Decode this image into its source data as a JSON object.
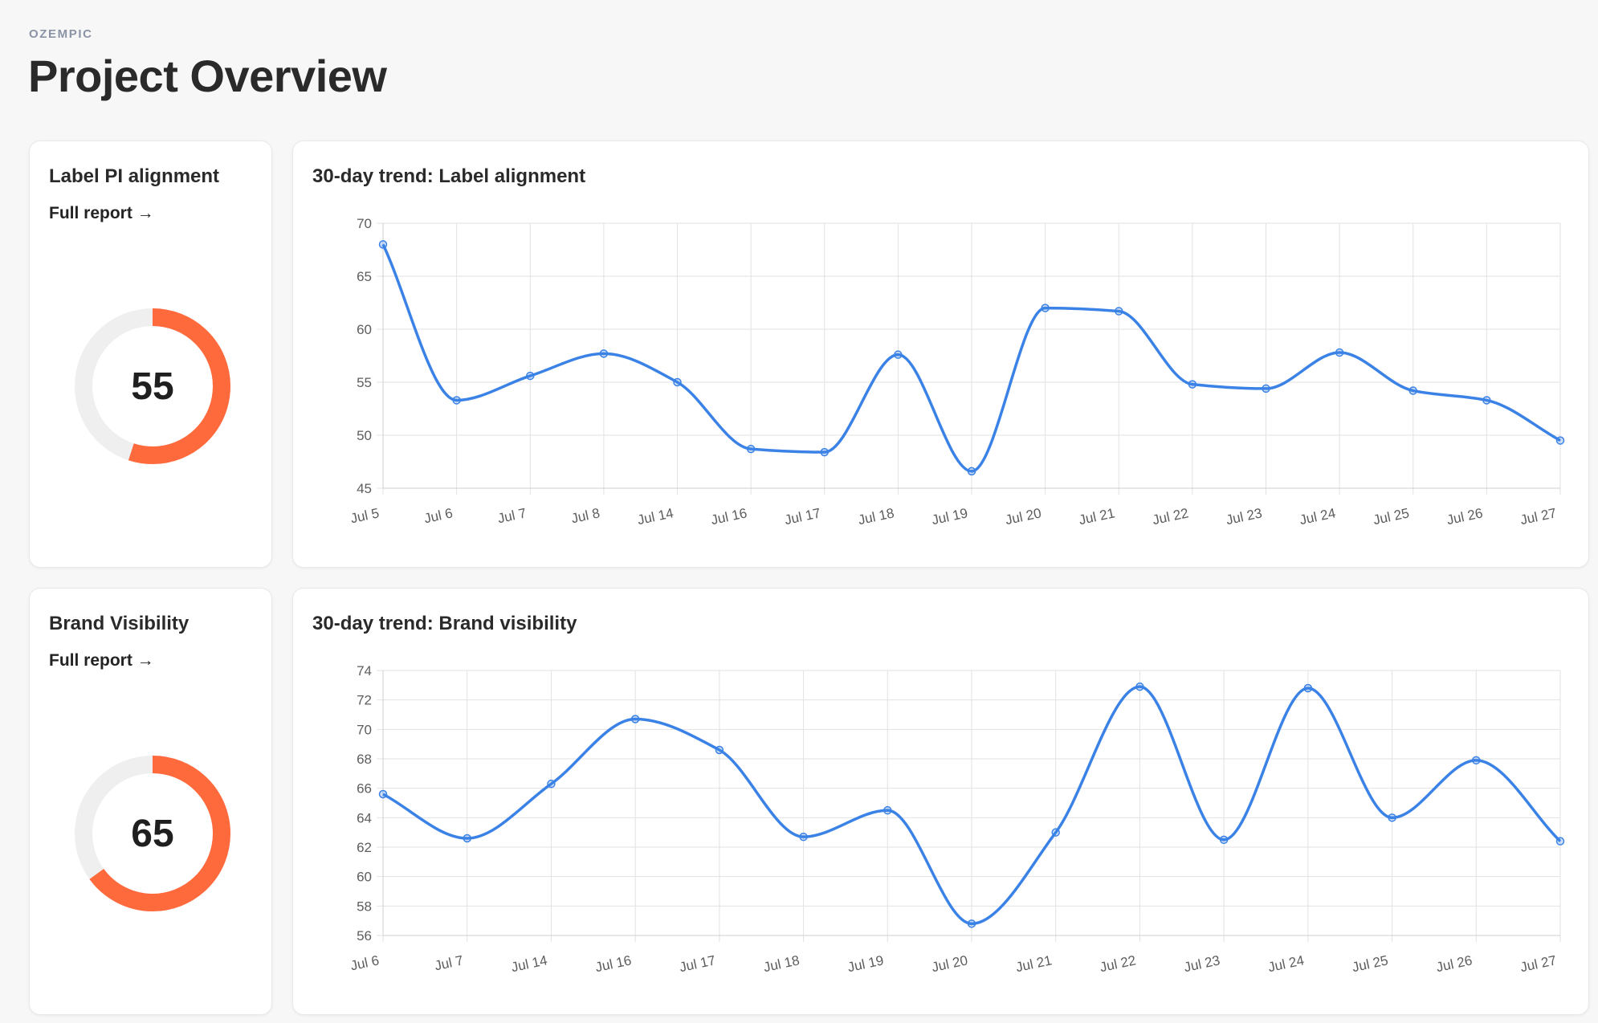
{
  "header": {
    "brand": "OZEMPIC",
    "title": "Project Overview"
  },
  "metrics": [
    {
      "title": "Label PI alignment",
      "link_label": "Full report →",
      "score": 55,
      "score_display": "55",
      "score_fraction": 0.55
    },
    {
      "title": "Brand Visibility",
      "link_label": "Full report →",
      "score": 65,
      "score_display": "65",
      "score_fraction": 0.65
    }
  ],
  "colors": {
    "accent": "#ff6a3d",
    "track": "#efefef",
    "line": "#3b82e6",
    "grid": "#e2e2e2",
    "background": "#f7f7f7",
    "card": "#ffffff"
  },
  "chart_data": [
    {
      "type": "line",
      "title": "30-day trend: Label alignment",
      "xlabel": "",
      "ylabel": "",
      "x": [
        "Jul 5",
        "Jul 6",
        "Jul 7",
        "Jul 8",
        "Jul 14",
        "Jul 16",
        "Jul 17",
        "Jul 18",
        "Jul 19",
        "Jul 20",
        "Jul 21",
        "Jul 22",
        "Jul 23",
        "Jul 24",
        "Jul 25",
        "Jul 26",
        "Jul 27"
      ],
      "series": [
        {
          "values": [
            68,
            53.3,
            55.6,
            57.7,
            55.0,
            48.7,
            48.4,
            57.6,
            46.6,
            62.0,
            61.7,
            54.8,
            54.4,
            57.8,
            54.2,
            53.3,
            49.5
          ]
        }
      ],
      "ylim": [
        45,
        70
      ],
      "yticks": [
        45,
        50,
        55,
        60,
        65,
        70
      ],
      "grid": true,
      "legend": "none"
    },
    {
      "type": "line",
      "title": "30-day trend: Brand visibility",
      "xlabel": "",
      "ylabel": "",
      "x": [
        "Jul 6",
        "Jul 7",
        "Jul 14",
        "Jul 16",
        "Jul 17",
        "Jul 18",
        "Jul 19",
        "Jul 20",
        "Jul 21",
        "Jul 22",
        "Jul 23",
        "Jul 24",
        "Jul 25",
        "Jul 26",
        "Jul 27"
      ],
      "series": [
        {
          "values": [
            65.6,
            62.6,
            66.3,
            70.7,
            68.6,
            62.7,
            64.5,
            56.8,
            63.0,
            72.9,
            62.5,
            72.8,
            64.0,
            67.9,
            62.4
          ]
        }
      ],
      "ylim": [
        56,
        74
      ],
      "yticks": [
        56,
        58,
        60,
        62,
        64,
        66,
        68,
        70,
        72,
        74
      ],
      "grid": true,
      "legend": "none"
    }
  ]
}
